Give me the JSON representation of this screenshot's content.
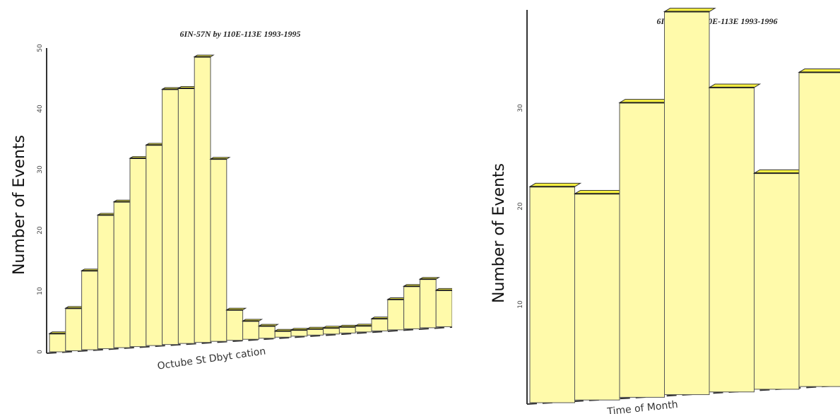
{
  "left_chart": {
    "title": "6IN-57N by 110E-113E 1993-1995",
    "ylabel": "Number of Events",
    "xlabel": "Octube St Dbyt cation",
    "yticks": [
      "0",
      "10",
      "20",
      "30",
      "40",
      "50"
    ]
  },
  "right_chart": {
    "title": "6IN-57N by 110E-113E 1993-1996",
    "ylabel": "Number of Events",
    "xlabel": "Time of Month",
    "yticks": [
      "10",
      "20",
      "30"
    ]
  },
  "chart_data": [
    {
      "type": "bar",
      "title": "6IN-57N by 110E-113E 1993-1995",
      "ylabel": "Number of Events",
      "xlabel": "Octube St Dbyt cation",
      "ylim": [
        0,
        50
      ],
      "values": [
        3,
        7,
        13,
        22,
        24,
        31,
        33,
        42,
        42,
        47,
        30,
        5,
        3,
        2,
        1,
        1,
        1,
        1,
        1,
        1,
        2,
        5,
        7,
        8,
        6
      ],
      "colors": {
        "bar": "#fffaaa",
        "top": "#f5ef40",
        "edge": "#555555"
      }
    },
    {
      "type": "bar",
      "title": "6IN-57N by 110E-113E 1993-1996",
      "ylabel": "Number of Events",
      "xlabel": "Time of Month",
      "ylim": [
        0,
        40
      ],
      "values": [
        22,
        21,
        30,
        39,
        31,
        22,
        32
      ],
      "colors": {
        "bar": "#fffaaa",
        "top": "#f5ef40",
        "edge": "#555555"
      }
    }
  ]
}
